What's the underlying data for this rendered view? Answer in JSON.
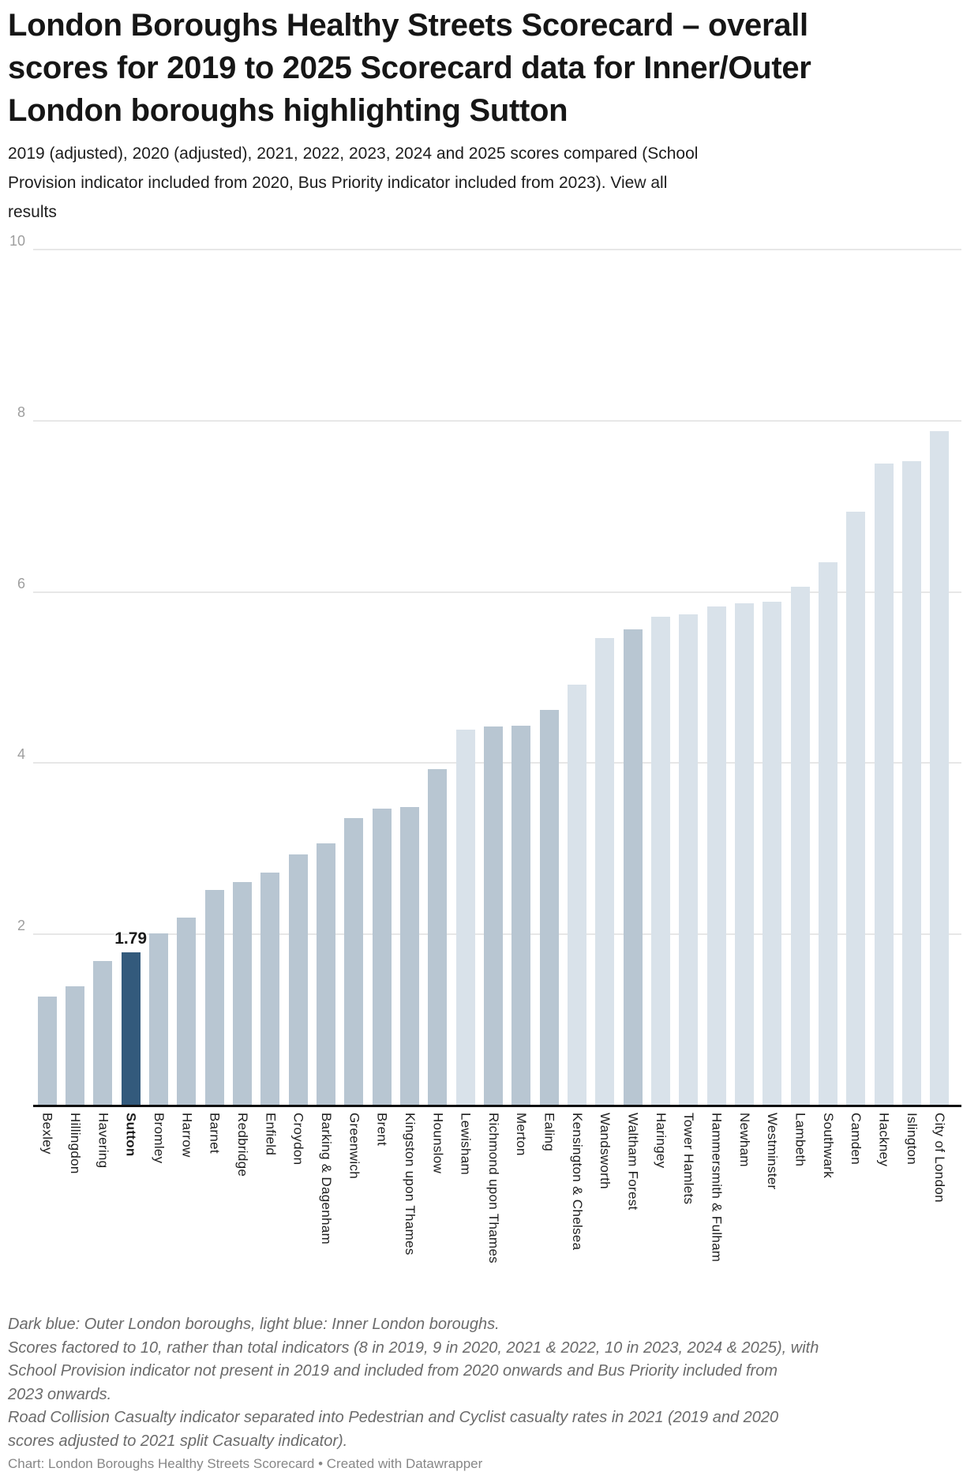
{
  "header": {
    "title_lines": [
      "London Boroughs Healthy Streets Scorecard – overall",
      "scores for 2019 to 2025 Scorecard data for Inner/Outer",
      "London boroughs highlighting Sutton"
    ],
    "subtitle_line1": "2019 (adjusted), 2020 (adjusted), 2021, 2022, 2023, 2024 and 2025 scores compared (School",
    "subtitle_line2_pre": "Provision indicator included from 2020, Bus Priority indicator included from 2023). ",
    "subtitle_link_line2": "View all",
    "subtitle_link_line3": "results"
  },
  "chart_data": {
    "type": "bar",
    "title": "London Boroughs Healthy Streets Scorecard – overall scores for 2019 to 2025 Scorecard data for Inner/Outer London boroughs highlighting Sutton",
    "xlabel": "",
    "ylabel": "",
    "ylim": [
      0,
      10
    ],
    "yticks": [
      2,
      4,
      6,
      8,
      10
    ],
    "grid": "horizontal",
    "legend_note": "Dark blue: Outer London boroughs, light blue: Inner London boroughs.",
    "highlight_category": "Sutton",
    "highlight_value_label": "1.79",
    "categories": [
      "Bexley",
      "Hillingdon",
      "Havering",
      "Sutton",
      "Bromley",
      "Harrow",
      "Barnet",
      "Redbridge",
      "Enfield",
      "Croydon",
      "Barking & Dagenham",
      "Greenwich",
      "Brent",
      "Kingston upon Thames",
      "Hounslow",
      "Lewisham",
      "Richmond upon Thames",
      "Merton",
      "Ealing",
      "Kensington & Chelsea",
      "Wandsworth",
      "Waltham Forest",
      "Haringey",
      "Tower Hamlets",
      "Hammersmith & Fulham",
      "Newham",
      "Westminster",
      "Lambeth",
      "Southwark",
      "Camden",
      "Hackney",
      "Islington",
      "City of London"
    ],
    "values": [
      1.27,
      1.39,
      1.69,
      1.79,
      2.01,
      2.2,
      2.52,
      2.61,
      2.72,
      2.93,
      3.06,
      3.36,
      3.47,
      3.49,
      3.93,
      4.39,
      4.43,
      4.44,
      4.62,
      4.92,
      5.46,
      5.56,
      5.71,
      5.74,
      5.83,
      5.87,
      5.89,
      6.06,
      6.35,
      6.94,
      7.5,
      7.53,
      7.88
    ],
    "group_per_bar": [
      "outer",
      "outer",
      "outer",
      "sutton",
      "outer",
      "outer",
      "outer",
      "outer",
      "outer",
      "outer",
      "outer",
      "outer",
      "outer",
      "outer",
      "outer",
      "inner",
      "outer",
      "outer",
      "outer",
      "inner",
      "inner",
      "outer",
      "inner",
      "inner",
      "inner",
      "inner",
      "inner",
      "inner",
      "inner",
      "inner",
      "inner",
      "inner",
      "inner"
    ],
    "colors": {
      "outer": "#b8c6d2",
      "inner": "#d9e2ea",
      "sutton": "#335a7c"
    }
  },
  "footer": {
    "note_lines": [
      "Dark blue: Outer London boroughs, light blue: Inner London boroughs.",
      "Scores factored to 10, rather than total indicators (8 in 2019, 9 in 2020, 2021 & 2022, 10 in 2023, 2024 & 2025), with",
      "School Provision indicator not present in 2019 and included from 2020 onwards and Bus Priority included from",
      "2023 onwards.",
      "Road Collision Casualty indicator separated into Pedestrian and Cyclist casualty rates in 2021 (2019 and 2020",
      "scores adjusted to 2021 split Casualty indicator)."
    ],
    "credit": "Chart: London Boroughs Healthy Streets Scorecard • Created with Datawrapper"
  }
}
